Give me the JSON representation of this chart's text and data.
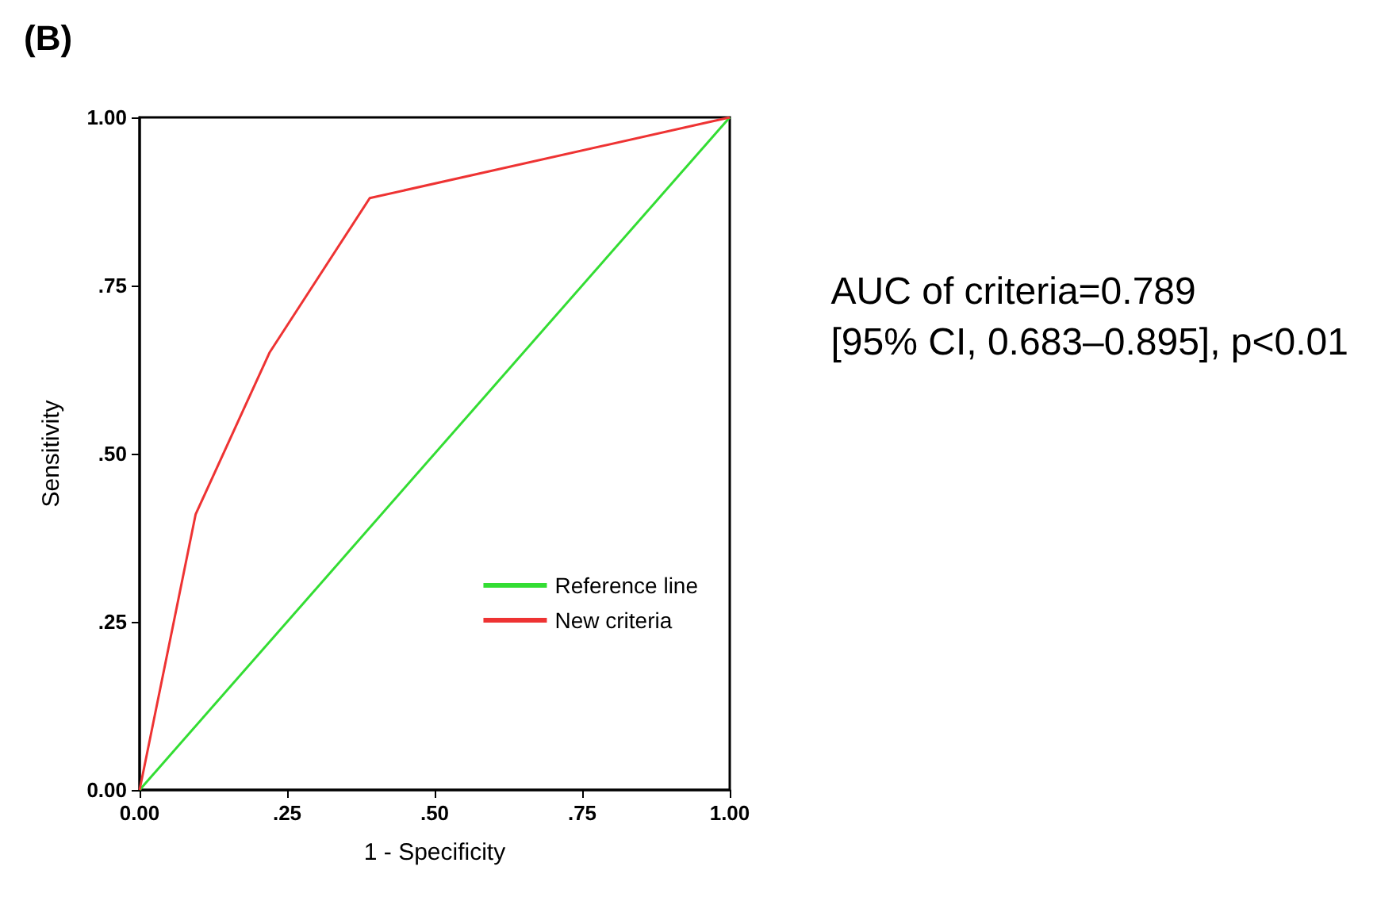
{
  "chart_data": {
    "type": "line",
    "title": "(B)",
    "xlabel": "1 - Specificity",
    "ylabel": "Sensitivity",
    "xlim": [
      0,
      1
    ],
    "ylim": [
      0,
      1
    ],
    "xticks": [
      {
        "value": 0,
        "label": "0.00"
      },
      {
        "value": 0.25,
        "label": ".25"
      },
      {
        "value": 0.5,
        "label": ".50"
      },
      {
        "value": 0.75,
        "label": ".75"
      },
      {
        "value": 1,
        "label": "1.00"
      }
    ],
    "yticks": [
      {
        "value": 0,
        "label": "0.00"
      },
      {
        "value": 0.25,
        "label": ".25"
      },
      {
        "value": 0.5,
        "label": ".50"
      },
      {
        "value": 0.75,
        "label": ".75"
      },
      {
        "value": 1,
        "label": "1.00"
      }
    ],
    "series": [
      {
        "name": "Reference line",
        "color": "#33dd33",
        "x": [
          0,
          1
        ],
        "values": [
          0,
          1
        ]
      },
      {
        "name": "New criteria",
        "color": "#ee3333",
        "x": [
          0,
          0.095,
          0.22,
          0.39,
          1
        ],
        "values": [
          0,
          0.41,
          0.65,
          0.88,
          1
        ]
      }
    ],
    "annotations": [
      "AUC of criteria=0.789\n[95% CI, 0.683–0.895], p<0.01"
    ],
    "legend": "bottom right",
    "grid": false,
    "marker": "none",
    "line_style": "solid"
  }
}
